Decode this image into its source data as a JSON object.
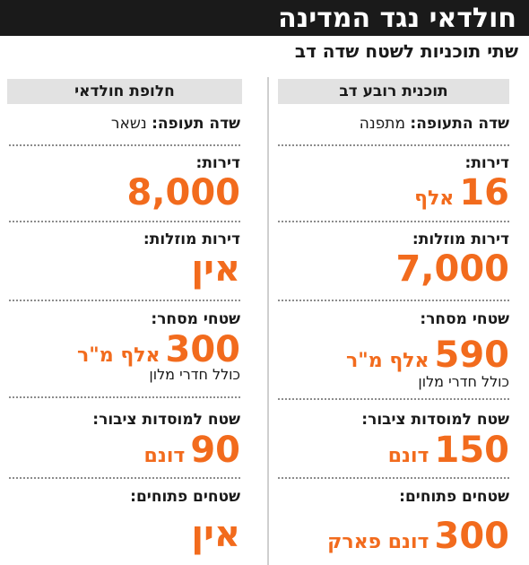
{
  "title": "חולדאי נגד המדינה",
  "subtitle": "שתי תוכניות לשטח שדה דב",
  "colors": {
    "accent": "#f26b1d",
    "title_bg": "#1a1a1a",
    "header_bg": "#e2e2e2"
  },
  "plans": [
    {
      "header": "תוכנית רובע דב",
      "airport_key": "שדה התעופה:",
      "airport_value": "מתפנה",
      "apartments_label": "דירות:",
      "apartments_value": "16",
      "apartments_unit": "אלף",
      "cheap_label": "דירות מוזלות:",
      "cheap_value": "7,000",
      "commerce_label": "שטחי מסחר:",
      "commerce_value": "590",
      "commerce_unit": "אלף מ\"ר",
      "commerce_note": "כולל חדרי מלון",
      "public_label": "שטח למוסדות ציבור:",
      "public_value": "150",
      "public_unit": "דונם",
      "open_label": "שטחים פתוחים:",
      "open_value": "300",
      "open_unit": "דונם פארק"
    },
    {
      "header": "חלופת חולדאי",
      "airport_key": "שדה תעופה:",
      "airport_value": "נשאר",
      "apartments_label": "דירות:",
      "apartments_value": "8,000",
      "cheap_label": "דירות מוזלות:",
      "cheap_value": "אין",
      "commerce_label": "שטחי מסחר:",
      "commerce_value": "300",
      "commerce_unit": "אלף מ\"ר",
      "commerce_note": "כולל חדרי מלון",
      "public_label": "שטח למוסדות ציבור:",
      "public_value": "90",
      "public_unit": "דונם",
      "open_label": "שטחים פתוחים:",
      "open_value": "אין"
    }
  ]
}
